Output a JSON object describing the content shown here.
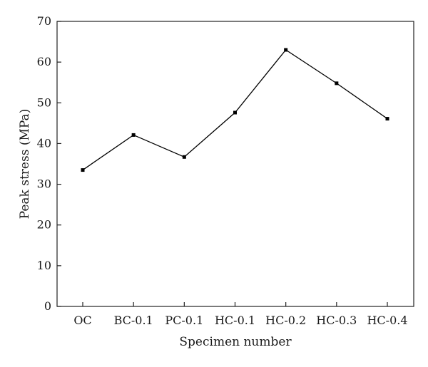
{
  "chart_data": {
    "type": "line",
    "xlabel": "Specimen number",
    "ylabel": "Peak stress (MPa)",
    "ylim": [
      0,
      70
    ],
    "yticks": [
      0,
      10,
      20,
      30,
      40,
      50,
      60,
      70
    ],
    "categories": [
      "OC",
      "BC-0.1",
      "PC-0.1",
      "HC-0.1",
      "HC-0.2",
      "HC-0.3",
      "HC-0.4"
    ],
    "series": [
      {
        "values": [
          33.5,
          42.1,
          36.7,
          47.6,
          63.0,
          54.8,
          46.1
        ],
        "color": "#000000",
        "marker": "square"
      }
    ],
    "grid": false,
    "legend": "none"
  }
}
